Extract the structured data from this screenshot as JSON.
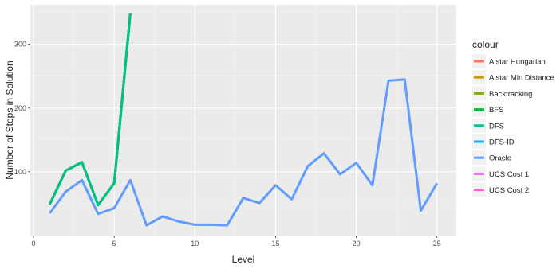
{
  "chart_data": {
    "type": "line",
    "xlabel": "Level",
    "ylabel": "Number of Steps in Solution",
    "xlim": [
      -0.2,
      26.2
    ],
    "ylim": [
      0,
      362
    ],
    "x_ticks": [
      0,
      5,
      10,
      15,
      20,
      25
    ],
    "y_ticks": [
      100,
      200,
      300
    ],
    "grid": true,
    "legend": {
      "title": "colour",
      "position": "right",
      "entries": [
        {
          "name": "A star Hungarian",
          "color": "#F8766D"
        },
        {
          "name": "A star Min Distance",
          "color": "#C49A00"
        },
        {
          "name": "Backtracking",
          "color": "#7CAE00"
        },
        {
          "name": "BFS",
          "color": "#00BA38"
        },
        {
          "name": "DFS",
          "color": "#00C08B"
        },
        {
          "name": "DFS-ID",
          "color": "#00B4F0"
        },
        {
          "name": "Oracle",
          "color": "#619CFF"
        },
        {
          "name": "UCS Cost 1",
          "color": "#E76BF3"
        },
        {
          "name": "UCS Cost 2",
          "color": "#FF62BC"
        }
      ]
    },
    "series": [
      {
        "name": "A star Hungarian",
        "color": "#F8766D",
        "x": [
          1,
          2,
          3,
          4,
          5,
          6
        ],
        "y": [
          49,
          102,
          115,
          48,
          82,
          349
        ]
      },
      {
        "name": "A star Min Distance",
        "color": "#C49A00",
        "x": [
          1,
          2,
          3,
          4,
          5,
          6
        ],
        "y": [
          49,
          102,
          115,
          48,
          82,
          349
        ]
      },
      {
        "name": "Backtracking",
        "color": "#7CAE00",
        "x": [
          1,
          2,
          3,
          4,
          5,
          6
        ],
        "y": [
          49,
          102,
          115,
          48,
          82,
          349
        ]
      },
      {
        "name": "BFS",
        "color": "#00BA38",
        "x": [
          1,
          2,
          3,
          4,
          5,
          6
        ],
        "y": [
          49,
          102,
          115,
          48,
          82,
          349
        ]
      },
      {
        "name": "DFS",
        "color": "#00C08B",
        "x": [
          1,
          2,
          3,
          4,
          5,
          6
        ],
        "y": [
          49,
          102,
          115,
          48,
          82,
          349
        ]
      },
      {
        "name": "DFS-ID",
        "color": "#00B4F0",
        "x": [],
        "y": []
      },
      {
        "name": "Oracle",
        "color": "#619CFF",
        "x": [
          1,
          2,
          3,
          4,
          5,
          6,
          7,
          8,
          9,
          10,
          11,
          12,
          13,
          14,
          15,
          16,
          17,
          18,
          19,
          20,
          21,
          22,
          23,
          24,
          25
        ],
        "y": [
          35,
          69,
          87,
          34,
          43,
          87,
          16,
          30,
          22,
          17,
          17,
          16,
          59,
          51,
          79,
          57,
          109,
          129,
          96,
          114,
          79,
          243,
          245,
          39,
          82
        ]
      },
      {
        "name": "UCS Cost 1",
        "color": "#E76BF3",
        "x": [],
        "y": []
      },
      {
        "name": "UCS Cost 2",
        "color": "#FF62BC",
        "x": [],
        "y": []
      }
    ]
  }
}
